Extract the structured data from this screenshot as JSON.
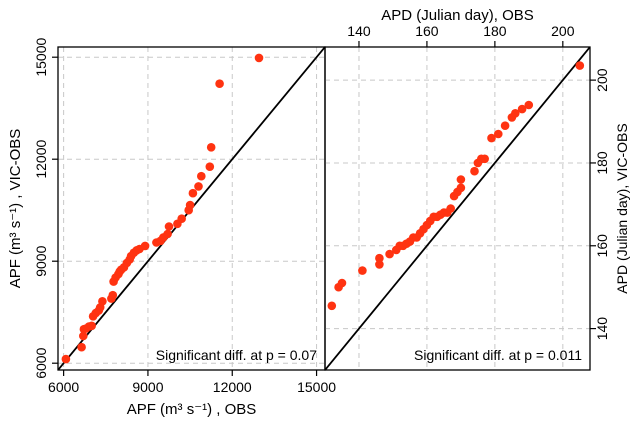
{
  "chart_data": [
    {
      "type": "scatter",
      "xlabel": "APF (m³ s⁻¹) , OBS",
      "ylabel": "APF (m³ s⁻¹) , VIC-OBS",
      "xlim": [
        5800,
        15300
      ],
      "ylim": [
        5800,
        15300
      ],
      "xticks": [
        6000,
        9000,
        12000,
        15000
      ],
      "yticks": [
        6000,
        9000,
        12000,
        15000
      ],
      "x_tick_labels": [
        "6000",
        "9000",
        "12000",
        "15000"
      ],
      "y_tick_labels": [
        "6000",
        "9000",
        "12000",
        "15000"
      ],
      "grid": true,
      "reference_line": "1:1",
      "annotation": "Significant diff. at p = 0.07",
      "point_color": "#ff3311",
      "points": [
        [
          6080,
          6120
        ],
        [
          6640,
          6470
        ],
        [
          6700,
          6800
        ],
        [
          6720,
          7000
        ],
        [
          6800,
          7020
        ],
        [
          6900,
          7080
        ],
        [
          7000,
          7100
        ],
        [
          7050,
          7380
        ],
        [
          7150,
          7480
        ],
        [
          7250,
          7550
        ],
        [
          7300,
          7640
        ],
        [
          7380,
          7820
        ],
        [
          7700,
          7900
        ],
        [
          7750,
          8000
        ],
        [
          7780,
          8400
        ],
        [
          7850,
          8520
        ],
        [
          7950,
          8620
        ],
        [
          8000,
          8700
        ],
        [
          8050,
          8750
        ],
        [
          8150,
          8820
        ],
        [
          8250,
          8950
        ],
        [
          8350,
          9050
        ],
        [
          8400,
          9150
        ],
        [
          8500,
          9250
        ],
        [
          8600,
          9320
        ],
        [
          8700,
          9360
        ],
        [
          8900,
          9450
        ],
        [
          9300,
          9550
        ],
        [
          9450,
          9600
        ],
        [
          9550,
          9700
        ],
        [
          9700,
          9800
        ],
        [
          9750,
          10020
        ],
        [
          10050,
          10100
        ],
        [
          10200,
          10250
        ],
        [
          10450,
          10500
        ],
        [
          10500,
          10650
        ],
        [
          10600,
          11000
        ],
        [
          10800,
          11200
        ],
        [
          10900,
          11500
        ],
        [
          11200,
          11780
        ],
        [
          11250,
          12350
        ],
        [
          11550,
          14220
        ],
        [
          12950,
          14980
        ]
      ]
    },
    {
      "type": "scatter",
      "xlabel": "APD (Julian day), OBS",
      "ylabel": "APD (Julian day), VIC-OBS",
      "xlim": [
        130,
        208
      ],
      "ylim": [
        130,
        208
      ],
      "xticks": [
        140,
        160,
        180,
        200
      ],
      "yticks": [
        140,
        160,
        180,
        200
      ],
      "x_tick_labels": [
        "140",
        "160",
        "180",
        "200"
      ],
      "y_tick_labels": [
        "140",
        "160",
        "180",
        "200"
      ],
      "grid": true,
      "reference_line": "1:1",
      "annotation": "Significant diff. at p = 0.011",
      "point_color": "#ff3311",
      "points": [
        [
          132,
          145.5
        ],
        [
          134,
          150
        ],
        [
          135,
          151
        ],
        [
          141,
          154
        ],
        [
          146,
          155.5
        ],
        [
          146,
          157
        ],
        [
          149,
          158
        ],
        [
          151,
          159
        ],
        [
          152,
          160
        ],
        [
          153,
          160
        ],
        [
          154,
          160.5
        ],
        [
          155,
          161
        ],
        [
          156,
          162
        ],
        [
          157,
          162
        ],
        [
          158,
          163
        ],
        [
          159,
          164
        ],
        [
          160,
          165
        ],
        [
          161,
          166
        ],
        [
          162,
          167
        ],
        [
          163,
          167
        ],
        [
          164,
          167.5
        ],
        [
          165,
          168
        ],
        [
          166,
          168
        ],
        [
          167,
          169
        ],
        [
          168,
          172
        ],
        [
          169,
          173
        ],
        [
          170,
          174
        ],
        [
          170,
          176
        ],
        [
          174,
          178
        ],
        [
          175,
          180
        ],
        [
          176,
          181
        ],
        [
          177,
          181
        ],
        [
          179,
          186
        ],
        [
          181,
          187
        ],
        [
          183,
          189
        ],
        [
          185,
          191
        ],
        [
          186,
          192
        ],
        [
          188,
          193
        ],
        [
          190,
          194
        ],
        [
          205,
          203.5
        ]
      ]
    }
  ]
}
